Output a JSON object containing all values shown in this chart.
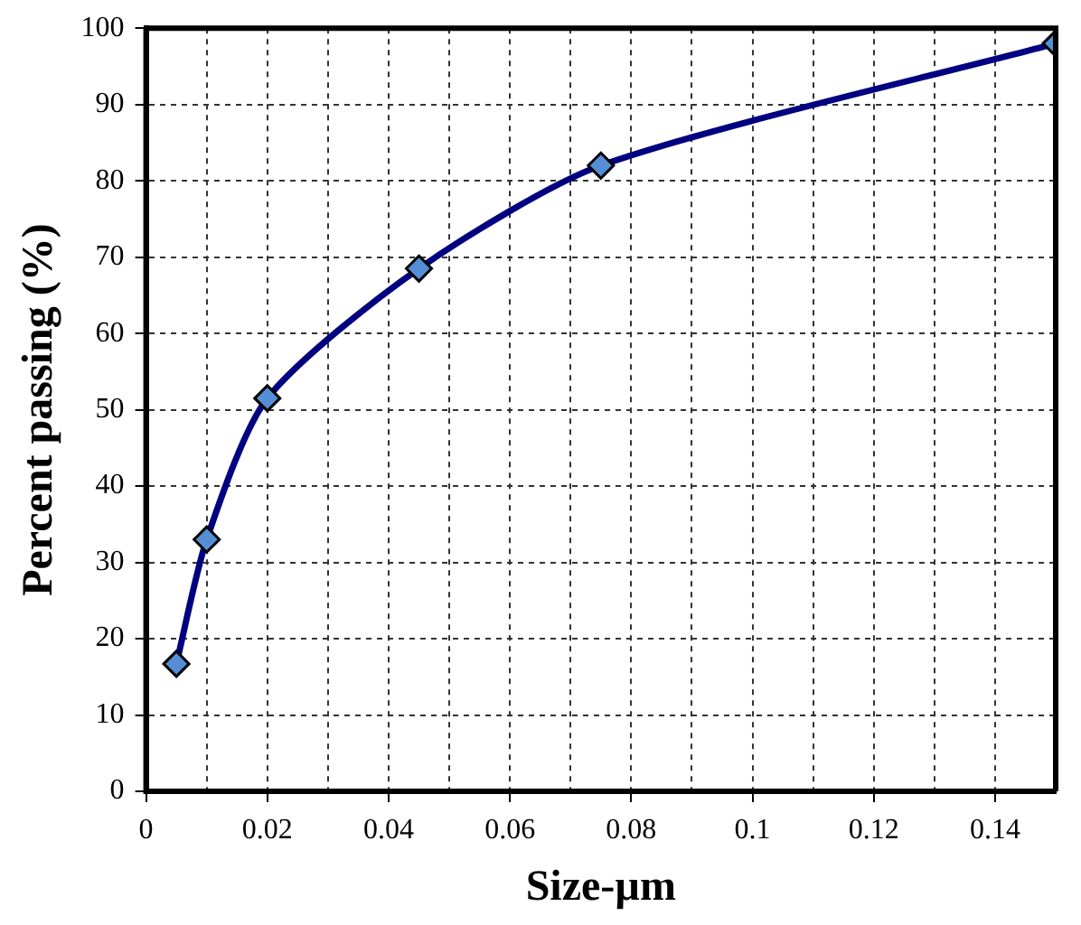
{
  "chart_data": {
    "type": "line",
    "xlabel": "Size-µm",
    "ylabel": "Percent passing (%)",
    "x": [
      0.005,
      0.01,
      0.02,
      0.045,
      0.075,
      0.15
    ],
    "series": [
      {
        "color": "#000080",
        "values": [
          16.7,
          33,
          51.5,
          68.5,
          82,
          98
        ]
      }
    ],
    "xlim": [
      0,
      0.15
    ],
    "ylim": [
      0,
      100
    ],
    "xticks": [
      0,
      {
        "value": 0.01,
        "label": null
      },
      0.02,
      {
        "value": 0.03,
        "label": null
      },
      0.04,
      {
        "value": 0.05,
        "label": null
      },
      0.06,
      {
        "value": 0.07,
        "label": null
      },
      0.08,
      {
        "value": 0.09,
        "label": null
      },
      0.1,
      {
        "value": 0.11,
        "label": null
      },
      0.12,
      {
        "value": 0.13,
        "label": null
      },
      0.14
    ],
    "yticks": [
      0,
      10,
      20,
      30,
      40,
      50,
      60,
      70,
      80,
      90,
      100
    ],
    "grid": true,
    "legend": false,
    "marker": "diamond",
    "line_style": "solid"
  }
}
